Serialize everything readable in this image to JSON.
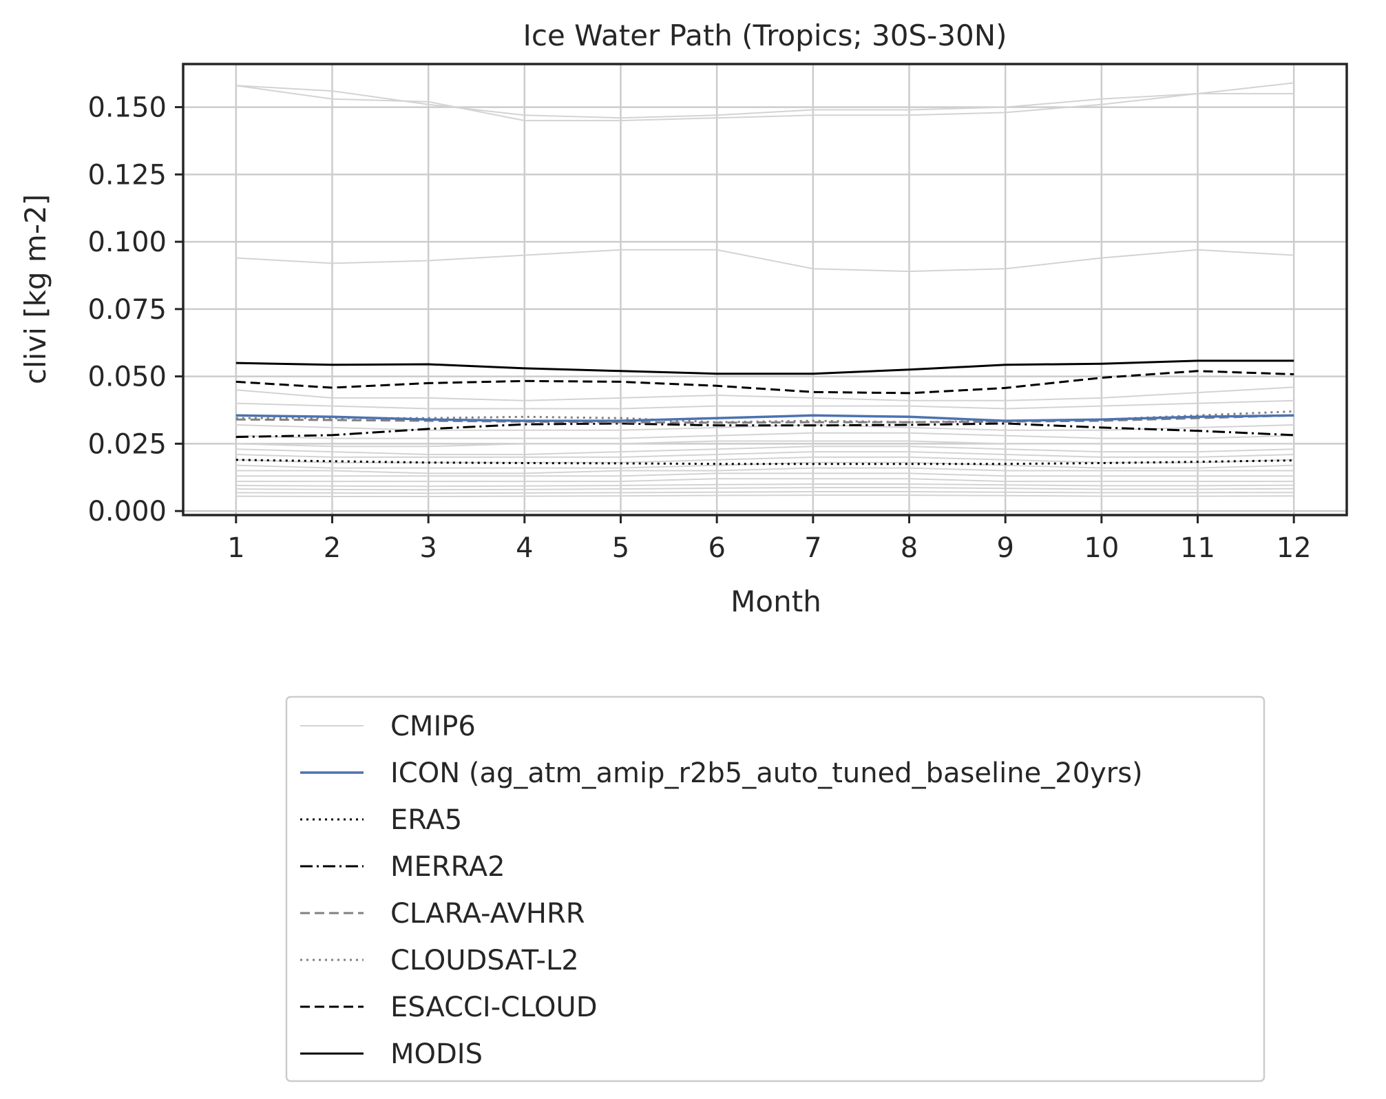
{
  "chart_data": {
    "type": "line",
    "title": "Ice Water Path (Tropics; 30S-30N)",
    "xlabel": "Month",
    "ylabel": "clivi [kg m-2]",
    "x": [
      1,
      2,
      3,
      4,
      5,
      6,
      7,
      8,
      9,
      10,
      11,
      12
    ],
    "xlim": [
      0.45,
      12.55
    ],
    "ylim": [
      -0.0015,
      0.166
    ],
    "yticks": [
      0.0,
      0.025,
      0.05,
      0.075,
      0.1,
      0.125,
      0.15
    ],
    "ytick_labels": [
      "0.000",
      "0.025",
      "0.050",
      "0.075",
      "0.100",
      "0.125",
      "0.150"
    ],
    "xtick_labels": [
      "1",
      "2",
      "3",
      "4",
      "5",
      "6",
      "7",
      "8",
      "9",
      "10",
      "11",
      "12"
    ],
    "grid": true,
    "legend_position": "below",
    "background_series": {
      "name": "CMIP6",
      "color": "#d3d3d3",
      "members": [
        [
          0.158,
          0.156,
          0.151,
          0.147,
          0.146,
          0.147,
          0.149,
          0.149,
          0.15,
          0.153,
          0.155,
          0.155
        ],
        [
          0.158,
          0.153,
          0.152,
          0.145,
          0.145,
          0.146,
          0.147,
          0.147,
          0.148,
          0.151,
          0.155,
          0.159
        ],
        [
          0.094,
          0.092,
          0.093,
          0.095,
          0.097,
          0.097,
          0.09,
          0.089,
          0.09,
          0.094,
          0.097,
          0.095
        ],
        [
          0.045,
          0.042,
          0.042,
          0.041,
          0.042,
          0.043,
          0.042,
          0.041,
          0.041,
          0.042,
          0.044,
          0.046
        ],
        [
          0.04,
          0.039,
          0.038,
          0.038,
          0.038,
          0.039,
          0.039,
          0.039,
          0.038,
          0.039,
          0.04,
          0.041
        ],
        [
          0.032,
          0.031,
          0.03,
          0.03,
          0.03,
          0.031,
          0.032,
          0.031,
          0.03,
          0.03,
          0.031,
          0.032
        ],
        [
          0.028,
          0.027,
          0.027,
          0.027,
          0.027,
          0.028,
          0.029,
          0.029,
          0.028,
          0.027,
          0.027,
          0.028
        ],
        [
          0.025,
          0.024,
          0.024,
          0.025,
          0.025,
          0.026,
          0.026,
          0.026,
          0.025,
          0.025,
          0.025,
          0.025
        ],
        [
          0.023,
          0.022,
          0.021,
          0.021,
          0.022,
          0.023,
          0.024,
          0.024,
          0.023,
          0.022,
          0.022,
          0.023
        ],
        [
          0.021,
          0.02,
          0.02,
          0.02,
          0.02,
          0.021,
          0.022,
          0.022,
          0.021,
          0.02,
          0.02,
          0.021
        ],
        [
          0.019,
          0.018,
          0.018,
          0.018,
          0.018,
          0.019,
          0.02,
          0.02,
          0.019,
          0.018,
          0.018,
          0.019
        ],
        [
          0.017,
          0.016,
          0.016,
          0.016,
          0.016,
          0.017,
          0.018,
          0.018,
          0.017,
          0.016,
          0.016,
          0.017
        ],
        [
          0.015,
          0.015,
          0.014,
          0.014,
          0.015,
          0.015,
          0.016,
          0.016,
          0.015,
          0.015,
          0.015,
          0.015
        ],
        [
          0.013,
          0.013,
          0.013,
          0.013,
          0.013,
          0.014,
          0.014,
          0.014,
          0.013,
          0.013,
          0.013,
          0.013
        ],
        [
          0.011,
          0.011,
          0.011,
          0.011,
          0.011,
          0.012,
          0.012,
          0.012,
          0.011,
          0.011,
          0.011,
          0.011
        ],
        [
          0.0095,
          0.0093,
          0.0092,
          0.0093,
          0.0095,
          0.0098,
          0.01,
          0.01,
          0.0097,
          0.0094,
          0.0094,
          0.0096
        ],
        [
          0.0082,
          0.008,
          0.0079,
          0.008,
          0.0082,
          0.0085,
          0.0087,
          0.0087,
          0.0084,
          0.0081,
          0.0081,
          0.0083
        ],
        [
          0.0068,
          0.0067,
          0.0066,
          0.0067,
          0.0068,
          0.007,
          0.0072,
          0.0072,
          0.007,
          0.0068,
          0.0068,
          0.0069
        ],
        [
          0.0055,
          0.0054,
          0.0054,
          0.0055,
          0.0056,
          0.0058,
          0.0059,
          0.0059,
          0.0057,
          0.0055,
          0.0055,
          0.0056
        ]
      ]
    },
    "series": [
      {
        "name": "ICON (ag_atm_amip_r2b5_auto_tuned_baseline_20yrs)",
        "color": "#4c72b0",
        "dash": "solid",
        "values": [
          0.0355,
          0.035,
          0.034,
          0.0335,
          0.0335,
          0.0345,
          0.0355,
          0.035,
          0.0335,
          0.034,
          0.035,
          0.0355
        ]
      },
      {
        "name": "ERA5",
        "color": "#000000",
        "dash": "dotted",
        "values": [
          0.019,
          0.0185,
          0.018,
          0.0178,
          0.0177,
          0.0175,
          0.0175,
          0.0175,
          0.0175,
          0.0178,
          0.0183,
          0.0188
        ]
      },
      {
        "name": "MERRA2",
        "color": "#000000",
        "dash": "dashdot",
        "values": [
          0.0275,
          0.0282,
          0.0305,
          0.0322,
          0.0325,
          0.0318,
          0.0318,
          0.032,
          0.0325,
          0.031,
          0.0298,
          0.0282
        ]
      },
      {
        "name": "CLARA-AVHRR",
        "color": "#808080",
        "dash": "dashed",
        "values": [
          0.034,
          0.0338,
          0.0335,
          0.0332,
          0.033,
          0.0328,
          0.033,
          0.033,
          0.0332,
          0.0335,
          0.0345,
          0.0355
        ]
      },
      {
        "name": "CLOUDSAT-L2",
        "color": "#808080",
        "dash": "dotted",
        "values": [
          0.0345,
          0.0345,
          0.0345,
          0.035,
          0.0345,
          0.033,
          0.0335,
          0.033,
          0.0335,
          0.034,
          0.0355,
          0.037
        ]
      },
      {
        "name": "ESACCI-CLOUD",
        "color": "#000000",
        "dash": "dashed",
        "values": [
          0.048,
          0.0458,
          0.0475,
          0.0483,
          0.048,
          0.0465,
          0.0442,
          0.0438,
          0.0457,
          0.0495,
          0.052,
          0.0508
        ]
      },
      {
        "name": "MODIS",
        "color": "#000000",
        "dash": "solid",
        "values": [
          0.055,
          0.0543,
          0.0545,
          0.053,
          0.052,
          0.051,
          0.051,
          0.0525,
          0.0543,
          0.0547,
          0.0558,
          0.0558
        ]
      }
    ]
  }
}
